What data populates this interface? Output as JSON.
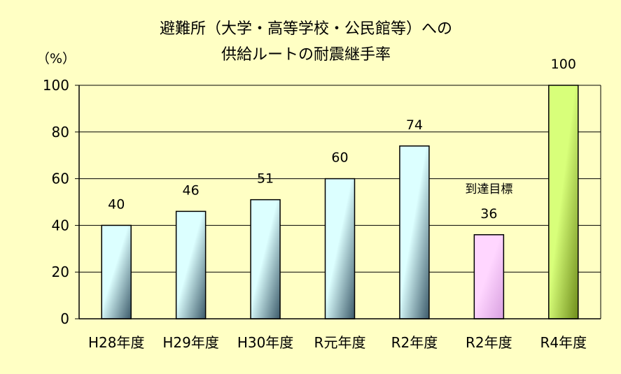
{
  "chart_data": {
    "type": "bar",
    "title_lines": [
      "避難所（大学・高等学校・公民館等）への",
      "供給ルートの耐震継手率"
    ],
    "ylabel": "（%）",
    "categories": [
      "H28年度",
      "H29年度",
      "H30年度",
      "R元年度",
      "R2年度",
      "R2年度",
      "R4年度"
    ],
    "values": [
      40,
      46,
      51,
      60,
      74,
      36,
      100
    ],
    "value_labels": [
      "40",
      "46",
      "51",
      "60",
      "74",
      "36",
      "100"
    ],
    "yticks": [
      0,
      20,
      40,
      60,
      80,
      100
    ],
    "ytick_labels": [
      "0",
      "20",
      "40",
      "60",
      "80",
      "100"
    ],
    "ylim": [
      0,
      100
    ],
    "grid": true,
    "legend": "none",
    "annotation": {
      "text": "到達目標",
      "category_index": 5
    },
    "bar_styles": [
      "actual",
      "actual",
      "actual",
      "actual",
      "actual",
      "target",
      "goal"
    ],
    "colors": {
      "background": "#ffffc4",
      "actual_top": "#dcffff",
      "actual_bottom": "#3c5a6a",
      "target_top": "#ffd6ff",
      "target_bottom": "#d8a0e0",
      "goal_top": "#d8ff7a",
      "goal_bottom": "#6e8c1a",
      "grid": "#000000"
    }
  }
}
